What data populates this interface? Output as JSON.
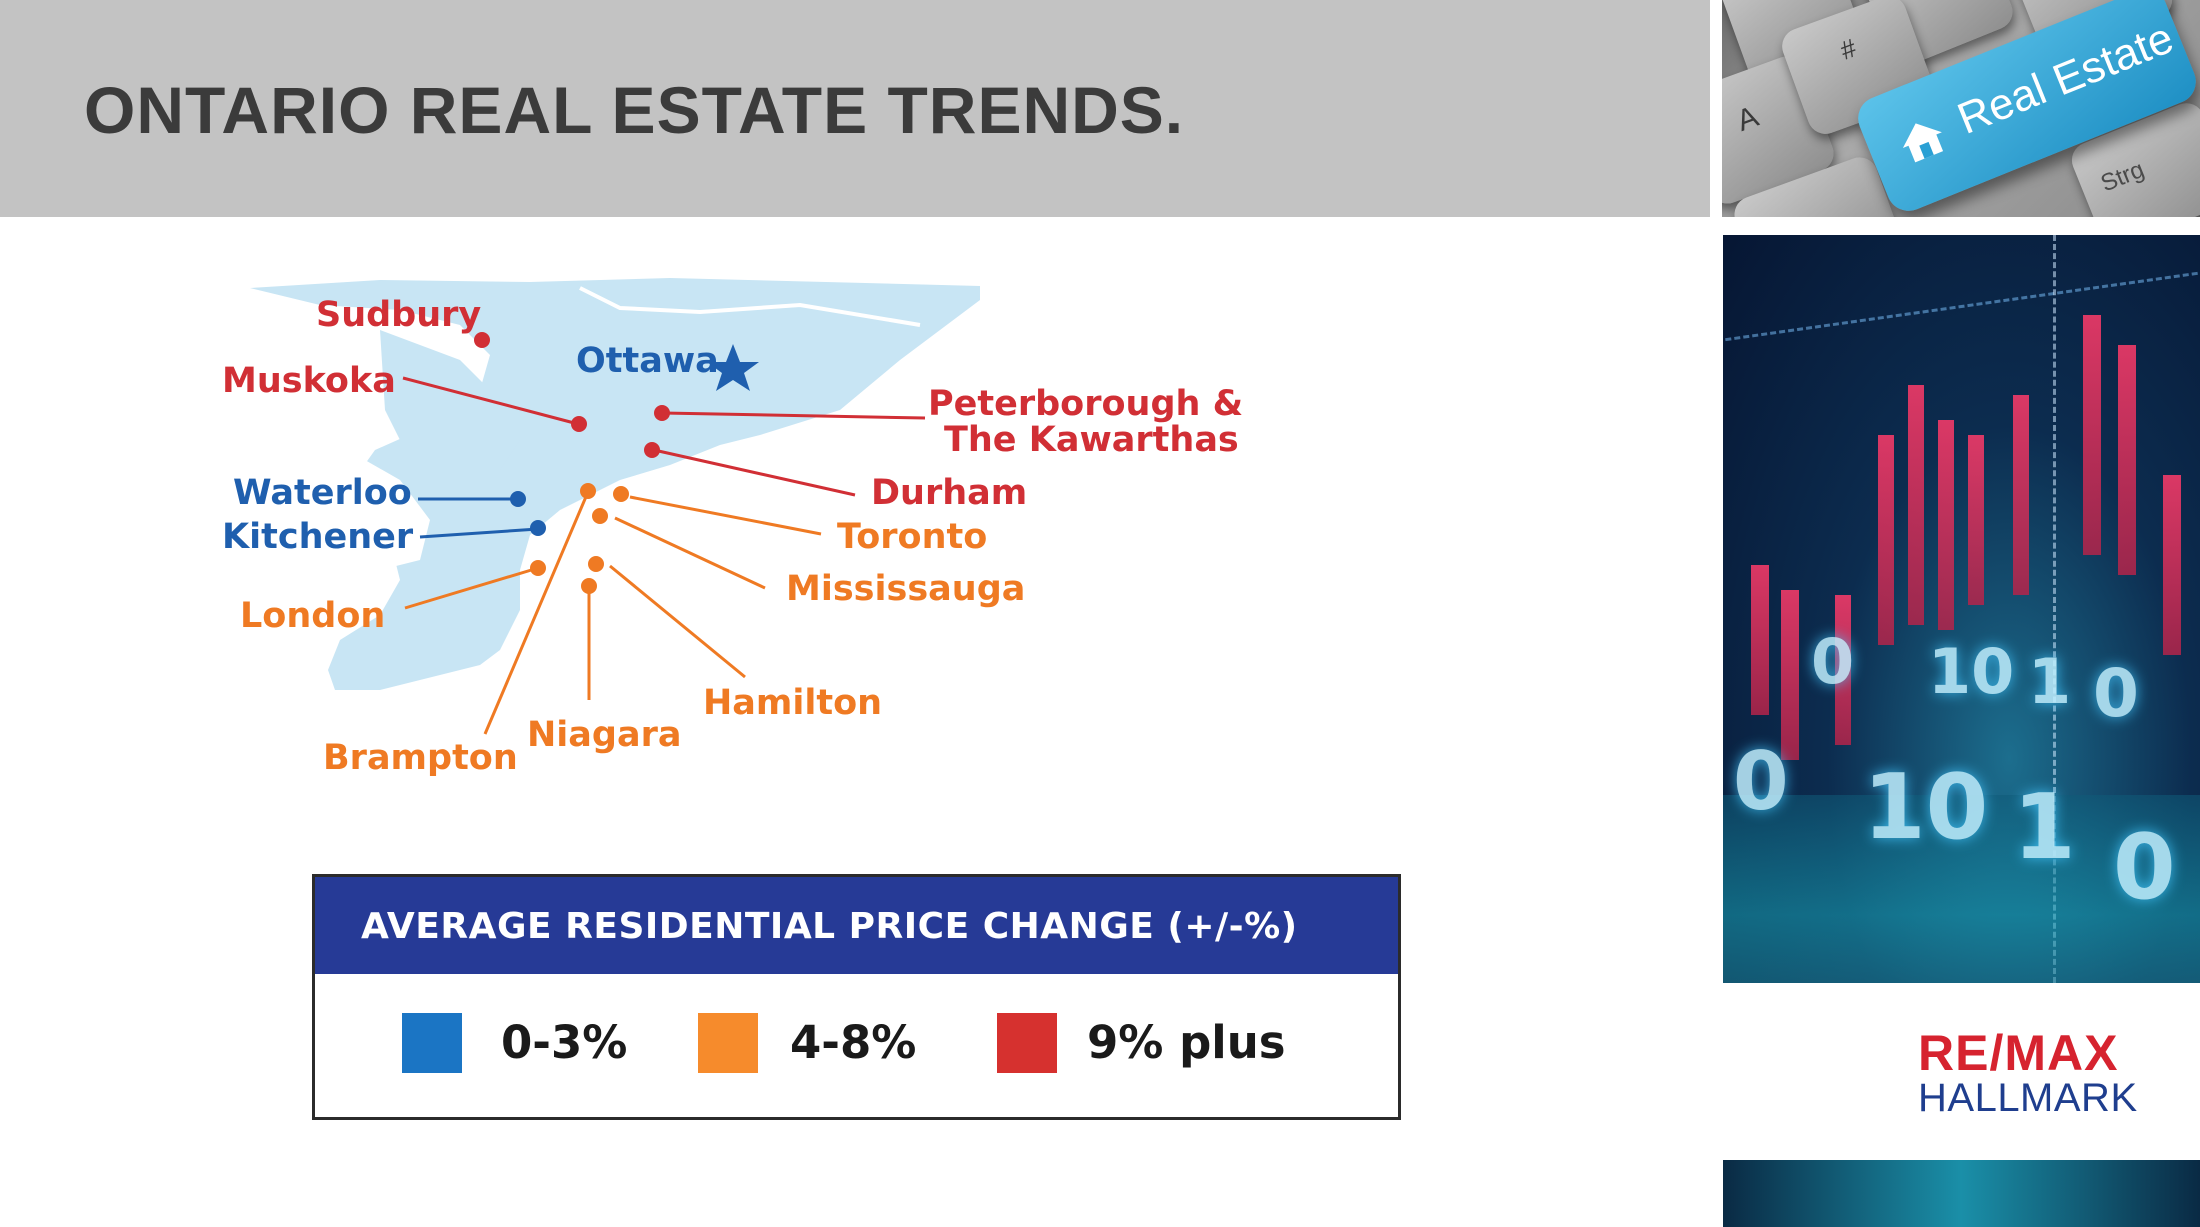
{
  "slide": {
    "title": "ONTARIO REAL ESTATE TRENDS."
  },
  "photos": {
    "keyboard_key_text": "Real Estate",
    "keyboard_other_keys": [
      "A",
      "Strg",
      "#"
    ],
    "chart_digits": [
      "0",
      "10",
      "1",
      "0",
      "0",
      "10",
      "1",
      "0"
    ]
  },
  "map": {
    "capital": {
      "name": "Ottawa",
      "color": "#1f5fae"
    },
    "cities": [
      {
        "name": "Sudbury",
        "category": "9% plus"
      },
      {
        "name": "Muskoka",
        "category": "9% plus"
      },
      {
        "name": "Peterborough &",
        "category": "9% plus"
      },
      {
        "name": "The Kawarthas",
        "category": "9% plus"
      },
      {
        "name": "Durham",
        "category": "9% plus"
      },
      {
        "name": "Waterloo",
        "category": "0-3%"
      },
      {
        "name": "Kitchener",
        "category": "0-3%"
      },
      {
        "name": "Toronto",
        "category": "4-8%"
      },
      {
        "name": "Mississauga",
        "category": "4-8%"
      },
      {
        "name": "London",
        "category": "4-8%"
      },
      {
        "name": "Hamilton",
        "category": "4-8%"
      },
      {
        "name": "Niagara",
        "category": "4-8%"
      },
      {
        "name": "Brampton",
        "category": "4-8%"
      }
    ],
    "colors": {
      "low": "#1f5fae",
      "mid": "#ef7a23",
      "high": "#d12f35",
      "land": "#c8e5f4"
    }
  },
  "legend": {
    "title": "AVERAGE RESIDENTIAL PRICE CHANGE (+/-%)",
    "items": [
      {
        "label": "0-3%",
        "color": "#1b75c4"
      },
      {
        "label": "4-8%",
        "color": "#f68b2c"
      },
      {
        "label": "9% plus",
        "color": "#d6312f"
      }
    ]
  },
  "logo": {
    "line1": "RE/MAX",
    "line2": "HALLMARK"
  }
}
